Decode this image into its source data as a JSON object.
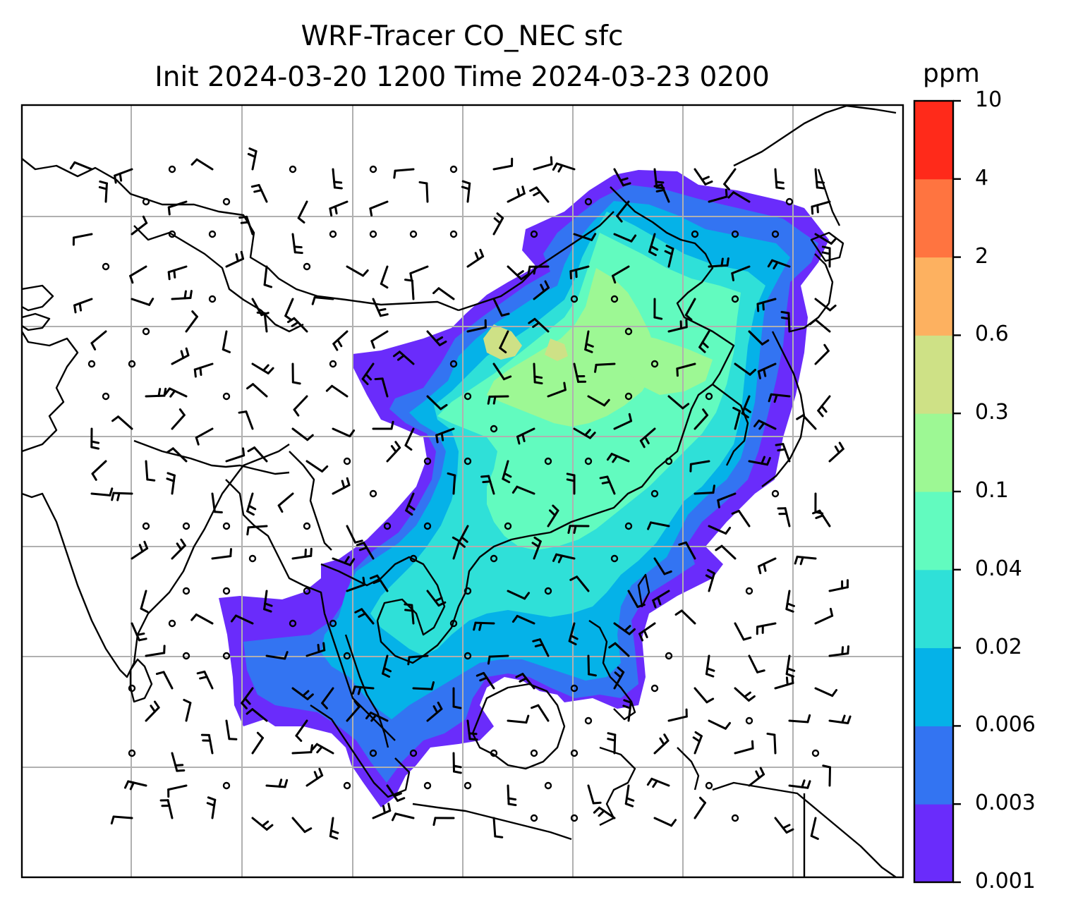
{
  "title_line1": "WRF-Tracer CO_NEC sfc",
  "title_line2": "Init 2024-03-20 1200 Time 2024-03-23 0200",
  "colorbar": {
    "unit": "ppm",
    "levels": [
      "0.001",
      "0.003",
      "0.006",
      "0.02",
      "0.04",
      "0.1",
      "0.3",
      "0.6",
      "2",
      "4",
      "10"
    ],
    "colors": [
      "#6a2cfb",
      "#3374f2",
      "#05b2e8",
      "#2fe0d8",
      "#62fbbf",
      "#9df894",
      "#cee186",
      "#fdb160",
      "#ff7440",
      "#ff2a1a"
    ]
  },
  "map": {
    "field_colors": {
      "level1": "#6a2cfb",
      "level2": "#3374f2",
      "level3": "#05b2e8",
      "level4": "#2fe0d8",
      "level5": "#62fbbf",
      "level6": "#9df894",
      "level7": "#cee186"
    },
    "gridline_color": "#b0b0b0",
    "coast_color": "#000000"
  }
}
